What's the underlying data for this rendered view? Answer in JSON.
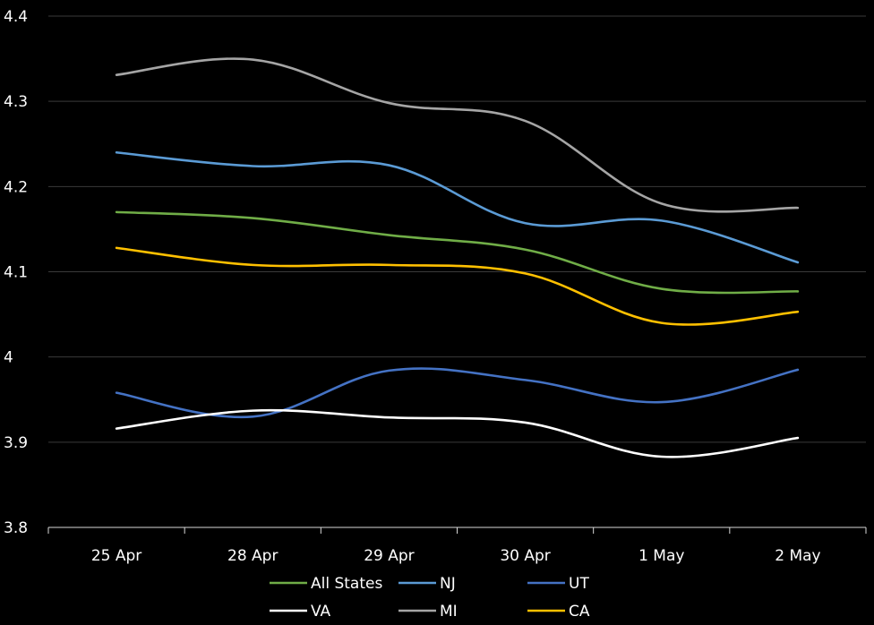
{
  "chart_data": {
    "type": "line",
    "title": "",
    "xlabel": "",
    "ylabel": "",
    "categories": [
      "25 Apr",
      "28 Apr",
      "29 Apr",
      "30 Apr",
      "1 May",
      "2 May"
    ],
    "ylim": [
      3.8,
      4.4
    ],
    "y_ticks": [
      "3.8",
      "3.9",
      "4",
      "4.1",
      "4.2",
      "4.3",
      "4.4"
    ],
    "grid": true,
    "legend_position": "bottom",
    "background": "#000000",
    "series": [
      {
        "name": "All States",
        "color": "#70AD47",
        "values": [
          4.17,
          4.163,
          4.143,
          4.126,
          4.08,
          4.077
        ]
      },
      {
        "name": "NJ",
        "color": "#5B9BD5",
        "values": [
          4.24,
          4.224,
          4.225,
          4.157,
          4.16,
          4.111
        ]
      },
      {
        "name": "UT",
        "color": "#4472C4",
        "values": [
          3.958,
          3.93,
          3.984,
          3.973,
          3.947,
          3.985
        ]
      },
      {
        "name": "VA",
        "color": "#FFFFFF",
        "values": [
          3.916,
          3.937,
          3.929,
          3.923,
          3.883,
          3.905
        ]
      },
      {
        "name": "MI",
        "color": "#A5A5A5",
        "values": [
          4.331,
          4.349,
          4.298,
          4.277,
          4.18,
          4.175
        ]
      },
      {
        "name": "CA",
        "color": "#FFC000",
        "values": [
          4.128,
          4.108,
          4.108,
          4.098,
          4.04,
          4.053
        ]
      }
    ]
  }
}
